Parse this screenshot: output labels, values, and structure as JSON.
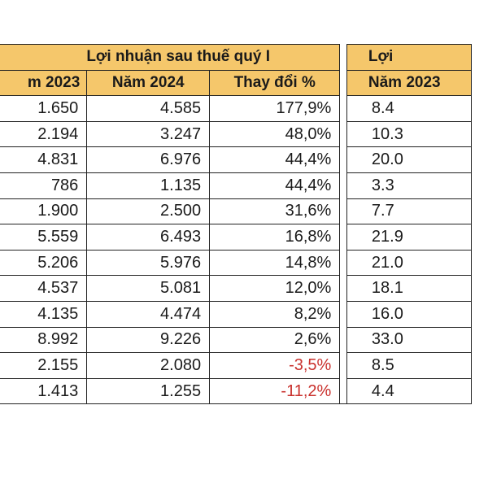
{
  "table": {
    "group_header_left": "Lợi nhuận sau thuế quý I",
    "group_header_right": "Lợi",
    "columns": [
      "m 2023",
      "Năm 2024",
      "Thay đổi %",
      "Năm 2023"
    ],
    "rows": [
      {
        "y2023": "1.650",
        "y2024": "4.585",
        "change": "177,9%",
        "next": "8.4",
        "negative": false
      },
      {
        "y2023": "2.194",
        "y2024": "3.247",
        "change": "48,0%",
        "next": "10.3",
        "negative": false
      },
      {
        "y2023": "4.831",
        "y2024": "6.976",
        "change": "44,4%",
        "next": "20.0",
        "negative": false
      },
      {
        "y2023": "786",
        "y2024": "1.135",
        "change": "44,4%",
        "next": "3.3",
        "negative": false
      },
      {
        "y2023": "1.900",
        "y2024": "2.500",
        "change": "31,6%",
        "next": "7.7",
        "negative": false
      },
      {
        "y2023": "5.559",
        "y2024": "6.493",
        "change": "16,8%",
        "next": "21.9",
        "negative": false
      },
      {
        "y2023": "5.206",
        "y2024": "5.976",
        "change": "14,8%",
        "next": "21.0",
        "negative": false
      },
      {
        "y2023": "4.537",
        "y2024": "5.081",
        "change": "12,0%",
        "next": "18.1",
        "negative": false
      },
      {
        "y2023": "4.135",
        "y2024": "4.474",
        "change": "8,2%",
        "next": "16.0",
        "negative": false
      },
      {
        "y2023": "8.992",
        "y2024": "9.226",
        "change": "2,6%",
        "next": "33.0",
        "negative": false
      },
      {
        "y2023": "2.155",
        "y2024": "2.080",
        "change": "-3,5%",
        "next": "8.5",
        "negative": true
      },
      {
        "y2023": "1.413",
        "y2024": "1.255",
        "change": "-11,2%",
        "next": "4.4",
        "negative": true
      }
    ]
  },
  "colors": {
    "header_fill": "#f5c76b",
    "negative_text": "#c9302c",
    "border": "#222222"
  }
}
